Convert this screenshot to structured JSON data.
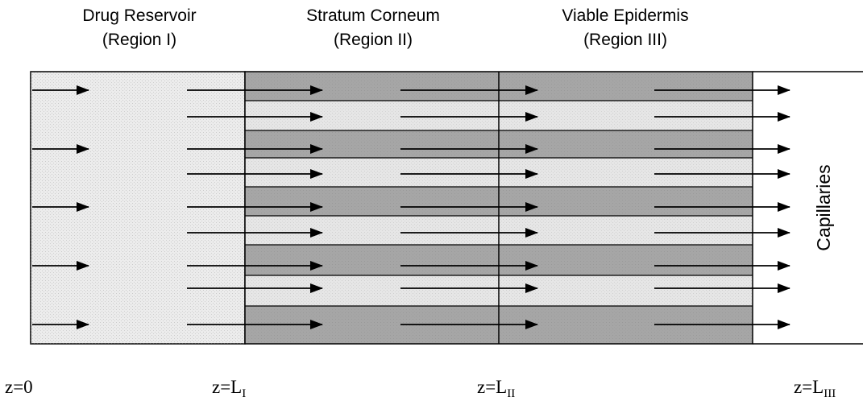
{
  "headers": [
    {
      "line1": "Drug Reservoir",
      "line2": "(Region I)"
    },
    {
      "line1": "Stratum Corneum",
      "line2": "(Region II)"
    },
    {
      "line1": "Viable Epidermis",
      "line2": "(Region III)"
    }
  ],
  "side_label": "Capillaries",
  "z_labels": [
    {
      "main": "z=0",
      "sub": ""
    },
    {
      "main": "z=L",
      "sub": "I"
    },
    {
      "main": "z=L",
      "sub": "II"
    },
    {
      "main": "z=L",
      "sub": "III"
    }
  ],
  "colors": {
    "reservoir": "#ececec",
    "tissue_band": "#a6a6a6",
    "tissue_gap": "#e6e6e6",
    "outline": "#000000"
  }
}
